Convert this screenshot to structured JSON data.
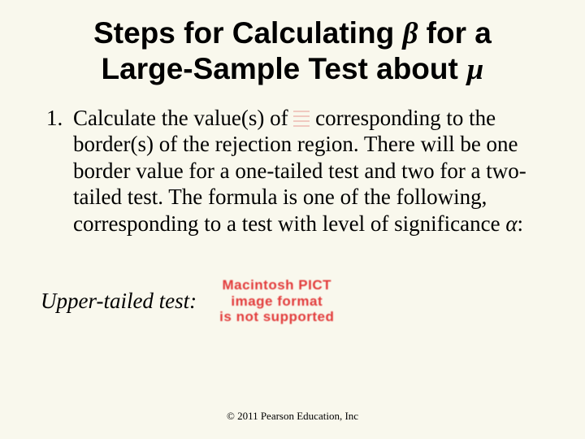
{
  "title": {
    "line1_pre": "Steps for Calculating ",
    "beta": "β",
    "line1_post": " for a",
    "line2_pre": "Large-Sample Test about ",
    "mu": "µ"
  },
  "body": {
    "item1_pre": "Calculate the value(s) of ",
    "item1_post": "corresponding to the border(s) of the rejection region. There will be one border value for a one-tailed test and two for a two-tailed test. The formula is one of the following, corresponding to a test with level of significance ",
    "alpha": "α",
    "item1_end": ":"
  },
  "upper_label": "Upper-tailed test:",
  "mac_pict": {
    "l1": "Macintosh PICT",
    "l2": "image format",
    "l3": "is not supported"
  },
  "copyright": "© 2011 Pearson Education, Inc"
}
